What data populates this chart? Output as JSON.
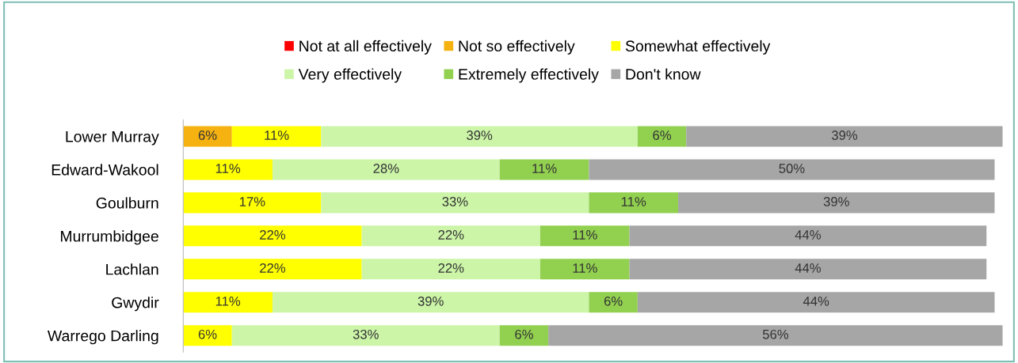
{
  "chart_data": {
    "type": "bar",
    "orientation": "horizontal",
    "stacked": true,
    "legend": "top",
    "grid": false,
    "categories": [
      "Lower Murray",
      "Edward-Wakool",
      "Goulburn",
      "Murrumbidgee",
      "Lachlan",
      "Gwydir",
      "Warrego Darling"
    ],
    "series": [
      {
        "name": "Not at all effectively",
        "color": "#ff0000",
        "values": [
          null,
          null,
          null,
          null,
          null,
          null,
          null
        ],
        "value_labels": [
          null,
          null,
          null,
          null,
          null,
          null,
          null
        ]
      },
      {
        "name": "Not so effectively",
        "color": "#f5b210",
        "values": [
          6,
          null,
          null,
          null,
          null,
          null,
          null
        ],
        "value_labels": [
          "6%",
          null,
          null,
          null,
          null,
          null,
          null
        ]
      },
      {
        "name": "Somewhat effectively",
        "color": "#ffff00",
        "values": [
          11,
          11,
          17,
          22,
          22,
          11,
          6
        ],
        "value_labels": [
          "11%",
          "11%",
          "17%",
          "22%",
          "22%",
          "11%",
          "6%"
        ]
      },
      {
        "name": "Very effectively",
        "color": "#ccf5a8",
        "values": [
          39,
          28,
          33,
          22,
          22,
          39,
          33
        ],
        "value_labels": [
          "39%",
          "28%",
          "33%",
          "22%",
          "22%",
          "39%",
          "33%"
        ]
      },
      {
        "name": "Extremely effectively",
        "color": "#92d050",
        "values": [
          6,
          11,
          11,
          11,
          11,
          6,
          6
        ],
        "value_labels": [
          "6%",
          "11%",
          "11%",
          "11%",
          "11%",
          "6%",
          "6%"
        ]
      },
      {
        "name": "Don't know",
        "color": "#a6a6a6",
        "values": [
          39,
          50,
          39,
          44,
          44,
          44,
          56
        ],
        "value_labels": [
          "39%",
          "50%",
          "39%",
          "44%",
          "44%",
          "44%",
          "56%"
        ]
      }
    ]
  }
}
